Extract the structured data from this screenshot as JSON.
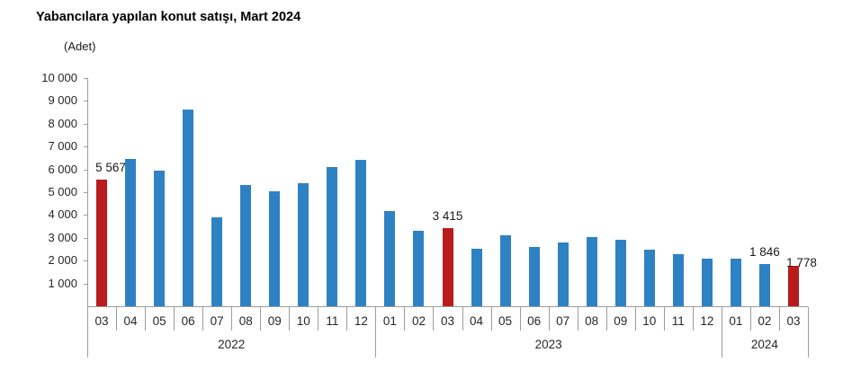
{
  "chart_data": {
    "type": "bar",
    "title": "Yabancılara yapılan konut satışı, Mart 2024",
    "unit_label": "(Adet)",
    "ylim": [
      0,
      10000
    ],
    "grid": false,
    "legend": "none",
    "y_ticks": [
      {
        "value": 10000,
        "label": "10 000"
      },
      {
        "value": 9000,
        "label": "9 000"
      },
      {
        "value": 8000,
        "label": "8 000"
      },
      {
        "value": 7000,
        "label": "7 000"
      },
      {
        "value": 6000,
        "label": "6 000"
      },
      {
        "value": 5000,
        "label": "5 000"
      },
      {
        "value": 4000,
        "label": "4 000"
      },
      {
        "value": 3000,
        "label": "3 000"
      },
      {
        "value": 2000,
        "label": "2 000"
      },
      {
        "value": 1000,
        "label": "1 000"
      }
    ],
    "categories": [
      "03",
      "04",
      "05",
      "06",
      "07",
      "08",
      "09",
      "10",
      "11",
      "12",
      "01",
      "02",
      "03",
      "04",
      "05",
      "06",
      "07",
      "08",
      "09",
      "10",
      "11",
      "12",
      "01",
      "02",
      "03"
    ],
    "year_groups": [
      {
        "label": "2022",
        "start": 0,
        "count": 10
      },
      {
        "label": "2023",
        "start": 10,
        "count": 12
      },
      {
        "label": "2024",
        "start": 22,
        "count": 3
      }
    ],
    "values": [
      5567,
      6447,
      5962,
      8630,
      3900,
      5310,
      5030,
      5410,
      6100,
      6400,
      4190,
      3320,
      3415,
      2520,
      3110,
      2580,
      2790,
      3040,
      2930,
      2480,
      2290,
      2070,
      2090,
      1846,
      1778
    ],
    "highlighted_indices": [
      0,
      12,
      24
    ],
    "point_labels": [
      {
        "index": 0,
        "text": "5 567"
      },
      {
        "index": 12,
        "text": "3 415"
      },
      {
        "index": 23,
        "text": "1 846"
      },
      {
        "index": 24,
        "text": "1 778"
      }
    ],
    "colors": {
      "bar": "#2E82C3",
      "highlight": "#B91C1C",
      "axis": "#9C9C9C",
      "label_text": "#1A1A1A"
    }
  }
}
